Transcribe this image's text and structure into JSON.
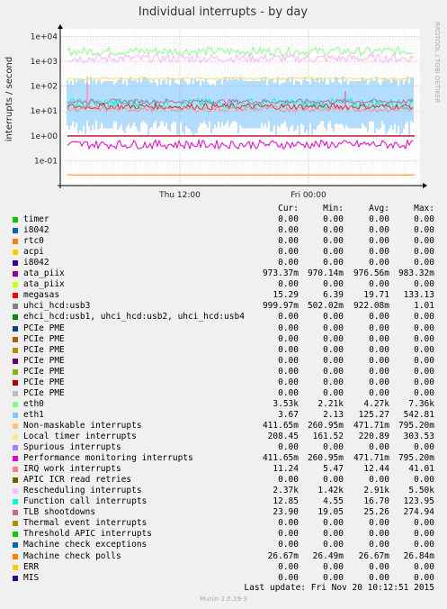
{
  "chart_data": {
    "type": "line",
    "title": "Individual interrupts - by day",
    "ylabel": "interrupts / second",
    "side_label": "RRDTOOL / TOBI OETIKER",
    "yscale": "log",
    "ylim": [
      0.01,
      20000
    ],
    "yticks": [
      "1e+04",
      "1e+03",
      "1e+02",
      "1e+01",
      "1e+00",
      "1e-01"
    ],
    "xticks": [
      "Thu 12:00",
      "Fri 00:00"
    ],
    "grid": true,
    "series_levels": [
      {
        "name": "eth0",
        "color": "#89ff89",
        "level": 2500
      },
      {
        "name": "Rescheduling interrupts",
        "color": "#ffb3ff",
        "level": 1400
      },
      {
        "name": "Local timer interrupts",
        "color": "#ffd966",
        "level": 200
      },
      {
        "name": "Performance monitoring interrupts",
        "color": "#ff00cc",
        "level": 0.45
      },
      {
        "name": "Machine check polls",
        "color": "#ff8800",
        "level": 0.027
      },
      {
        "name": "ata_piix",
        "color": "#cc0000",
        "level": 0.97
      }
    ]
  },
  "legend": {
    "headers": [
      "Cur:",
      "Min:",
      "Avg:",
      "Max:"
    ],
    "rows": [
      {
        "name": "timer",
        "color": "#00cc00",
        "cur": "0.00",
        "min": "0.00",
        "avg": "0.00",
        "max": "0.00"
      },
      {
        "name": "i8042",
        "color": "#0066b3",
        "cur": "0.00",
        "min": "0.00",
        "avg": "0.00",
        "max": "0.00"
      },
      {
        "name": "rtc0",
        "color": "#ff8000",
        "cur": "0.00",
        "min": "0.00",
        "avg": "0.00",
        "max": "0.00"
      },
      {
        "name": "acpi",
        "color": "#ffcc00",
        "cur": "0.00",
        "min": "0.00",
        "avg": "0.00",
        "max": "0.00"
      },
      {
        "name": "i8042",
        "color": "#330099",
        "cur": "0.00",
        "min": "0.00",
        "avg": "0.00",
        "max": "0.00"
      },
      {
        "name": "ata_piix",
        "color": "#990099",
        "cur": "973.37m",
        "min": "970.14m",
        "avg": "976.56m",
        "max": "983.32m"
      },
      {
        "name": "ata_piix",
        "color": "#ccff00",
        "cur": "0.00",
        "min": "0.00",
        "avg": "0.00",
        "max": "0.00"
      },
      {
        "name": "megasas",
        "color": "#ff0000",
        "cur": "15.29",
        "min": "6.39",
        "avg": "19.71",
        "max": "133.13"
      },
      {
        "name": "uhci_hcd:usb3",
        "color": "#808080",
        "cur": "999.97m",
        "min": "502.02m",
        "avg": "922.08m",
        "max": "1.01"
      },
      {
        "name": "ehci_hcd:usb1, uhci_hcd:usb2, uhci_hcd:usb4",
        "color": "#008f00",
        "cur": "0.00",
        "min": "0.00",
        "avg": "0.00",
        "max": "0.00"
      },
      {
        "name": "PCIe PME",
        "color": "#00487d",
        "cur": "0.00",
        "min": "0.00",
        "avg": "0.00",
        "max": "0.00"
      },
      {
        "name": "PCIe PME",
        "color": "#b35a00",
        "cur": "0.00",
        "min": "0.00",
        "avg": "0.00",
        "max": "0.00"
      },
      {
        "name": "PCIe PME",
        "color": "#b38f00",
        "cur": "0.00",
        "min": "0.00",
        "avg": "0.00",
        "max": "0.00"
      },
      {
        "name": "PCIe PME",
        "color": "#6b006b",
        "cur": "0.00",
        "min": "0.00",
        "avg": "0.00",
        "max": "0.00"
      },
      {
        "name": "PCIe PME",
        "color": "#8fb300",
        "cur": "0.00",
        "min": "0.00",
        "avg": "0.00",
        "max": "0.00"
      },
      {
        "name": "PCIe PME",
        "color": "#b30000",
        "cur": "0.00",
        "min": "0.00",
        "avg": "0.00",
        "max": "0.00"
      },
      {
        "name": "PCIe PME",
        "color": "#bebebe",
        "cur": "0.00",
        "min": "0.00",
        "avg": "0.00",
        "max": "0.00"
      },
      {
        "name": "eth0",
        "color": "#80ff80",
        "cur": "3.53k",
        "min": "2.21k",
        "avg": "4.27k",
        "max": "7.36k"
      },
      {
        "name": "eth1",
        "color": "#80c9ff",
        "cur": "3.67",
        "min": "2.13",
        "avg": "125.27",
        "max": "542.81"
      },
      {
        "name": "Non-maskable interrupts",
        "color": "#ffc080",
        "cur": "411.65m",
        "min": "260.95m",
        "avg": "471.71m",
        "max": "795.20m"
      },
      {
        "name": "Local timer interrupts",
        "color": "#ffe680",
        "cur": "208.45",
        "min": "161.52",
        "avg": "220.89",
        "max": "303.53"
      },
      {
        "name": "Spurious interrupts",
        "color": "#aa80ff",
        "cur": "0.00",
        "min": "0.00",
        "avg": "0.00",
        "max": "0.00"
      },
      {
        "name": "Performance monitoring interrupts",
        "color": "#ee00cc",
        "cur": "411.65m",
        "min": "260.95m",
        "avg": "471.71m",
        "max": "795.20m"
      },
      {
        "name": "IRQ work interrupts",
        "color": "#ff8080",
        "cur": "11.24",
        "min": "5.47",
        "avg": "12.44",
        "max": "41.01"
      },
      {
        "name": "APIC ICR read retries",
        "color": "#666600",
        "cur": "0.00",
        "min": "0.00",
        "avg": "0.00",
        "max": "0.00"
      },
      {
        "name": "Rescheduling interrupts",
        "color": "#ffbfff",
        "cur": "2.37k",
        "min": "1.42k",
        "avg": "2.91k",
        "max": "5.50k"
      },
      {
        "name": "Function call interrupts",
        "color": "#00ffcc",
        "cur": "12.85",
        "min": "4.55",
        "avg": "16.70",
        "max": "123.95"
      },
      {
        "name": "TLB shootdowns",
        "color": "#cc6699",
        "cur": "23.90",
        "min": "19.05",
        "avg": "25.26",
        "max": "274.94"
      },
      {
        "name": "Thermal event interrupts",
        "color": "#999900",
        "cur": "0.00",
        "min": "0.00",
        "avg": "0.00",
        "max": "0.00"
      },
      {
        "name": "Threshold APIC interrupts",
        "color": "#00cc00",
        "cur": "0.00",
        "min": "0.00",
        "avg": "0.00",
        "max": "0.00"
      },
      {
        "name": "Machine check exceptions",
        "color": "#0066b3",
        "cur": "0.00",
        "min": "0.00",
        "avg": "0.00",
        "max": "0.00"
      },
      {
        "name": "Machine check polls",
        "color": "#ff8000",
        "cur": "26.67m",
        "min": "26.49m",
        "avg": "26.67m",
        "max": "26.84m"
      },
      {
        "name": "ERR",
        "color": "#ffcc00",
        "cur": "0.00",
        "min": "0.00",
        "avg": "0.00",
        "max": "0.00"
      },
      {
        "name": "MIS",
        "color": "#330099",
        "cur": "0.00",
        "min": "0.00",
        "avg": "0.00",
        "max": "0.00"
      }
    ]
  },
  "footer": {
    "last_update": "Last update:  Fri Nov 20 10:12:51 2015",
    "munin_version": "Munin 2.0.19-3"
  }
}
